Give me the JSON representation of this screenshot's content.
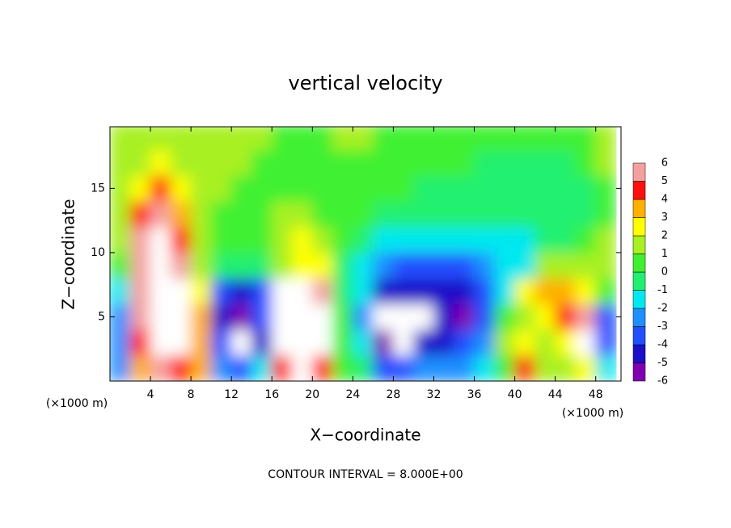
{
  "chart_data": {
    "type": "heatmap",
    "title": "vertical velocity",
    "x_label": "X−coordinate",
    "y_label": "Z−coordinate",
    "x_unit": "(×1000 m)",
    "y_unit": "(×1000 m)",
    "annotation": "CONTOUR INTERVAL = 8.000E+00",
    "xlim": [
      0,
      50.5
    ],
    "ylim": [
      0,
      19.8
    ],
    "xticks": [
      4,
      8,
      12,
      16,
      20,
      24,
      28,
      32,
      36,
      40,
      44,
      48
    ],
    "yticks": [
      5,
      10,
      15
    ],
    "x": [
      1,
      3,
      5,
      7,
      9,
      11,
      13,
      15,
      17,
      19,
      21,
      23,
      25,
      27,
      29,
      31,
      33,
      35,
      37,
      39,
      41,
      43,
      45,
      47,
      49
    ],
    "y": [
      1,
      3,
      5,
      7,
      9,
      11,
      13,
      15,
      17,
      19
    ],
    "values": [
      [
        -3,
        3,
        5,
        4,
        3,
        -3,
        -4,
        -2,
        4,
        6,
        4,
        0,
        -1,
        -4,
        -4,
        -3,
        -3,
        -3,
        -2,
        0,
        4,
        1,
        1,
        2,
        -2
      ],
      [
        -3,
        4,
        8,
        6,
        3,
        -4,
        -8,
        -5,
        6,
        10,
        6,
        0,
        -2,
        -6,
        -7,
        -5,
        -5,
        -4,
        -3,
        1,
        2,
        1,
        2,
        6,
        -4
      ],
      [
        -3,
        5,
        10,
        8,
        3,
        -5,
        -6,
        -4,
        7,
        10,
        7,
        0,
        -3,
        -8,
        -8,
        -7,
        -5,
        -6,
        -4,
        0,
        1,
        2,
        4,
        5,
        -4
      ],
      [
        -2,
        5,
        10,
        7,
        2,
        -4,
        -5,
        -4,
        6,
        8,
        5,
        -1,
        -2,
        -5,
        -5,
        -5,
        -5,
        -5,
        -4,
        -2,
        2,
        3,
        3,
        2,
        0
      ],
      [
        0,
        5,
        10,
        5,
        1,
        -1,
        -1,
        -1,
        1,
        2,
        2,
        -1,
        -2,
        -3,
        -4,
        -4,
        -4,
        -4,
        -3,
        -2,
        -2,
        1,
        1,
        1,
        1
      ],
      [
        1,
        5,
        8,
        4,
        1,
        0,
        0,
        0,
        1,
        2,
        1,
        0,
        -1,
        -2,
        -2,
        -2,
        -2,
        -2,
        -2,
        -2,
        -2,
        -1,
        -1,
        0,
        1
      ],
      [
        1,
        4,
        5,
        3,
        1,
        0,
        0,
        0,
        1,
        1,
        0,
        0,
        0,
        -1,
        -1,
        -1,
        -1,
        -1,
        -1,
        -1,
        -1,
        -1,
        -1,
        -1,
        0
      ],
      [
        1,
        2,
        4,
        2,
        1,
        1,
        0,
        0,
        0,
        0,
        0,
        0,
        0,
        0,
        0,
        -1,
        -1,
        -1,
        -1,
        -1,
        -1,
        -1,
        -1,
        -1,
        0
      ],
      [
        1,
        1,
        2,
        1,
        1,
        1,
        1,
        0,
        0,
        0,
        0,
        0,
        0,
        0,
        0,
        0,
        0,
        0,
        -1,
        -1,
        -1,
        -1,
        -1,
        0,
        1
      ],
      [
        1,
        1,
        1,
        1,
        1,
        1,
        1,
        1,
        0,
        0,
        0,
        1,
        1,
        0,
        0,
        0,
        0,
        0,
        0,
        0,
        0,
        0,
        0,
        0,
        1
      ]
    ],
    "levels": [
      -6,
      -5,
      -4,
      -3,
      -2,
      -1,
      0,
      1,
      2,
      3,
      4,
      5,
      6
    ],
    "colors": [
      "#8000b0",
      "#1a10c8",
      "#2050ff",
      "#1e90ff",
      "#00e8f0",
      "#20f070",
      "#40f030",
      "#a8f020",
      "#ffff00",
      "#ffb000",
      "#ff1010",
      "#f5a0a0"
    ],
    "over_color": "#ffffff",
    "under_color": "#ffffff"
  }
}
